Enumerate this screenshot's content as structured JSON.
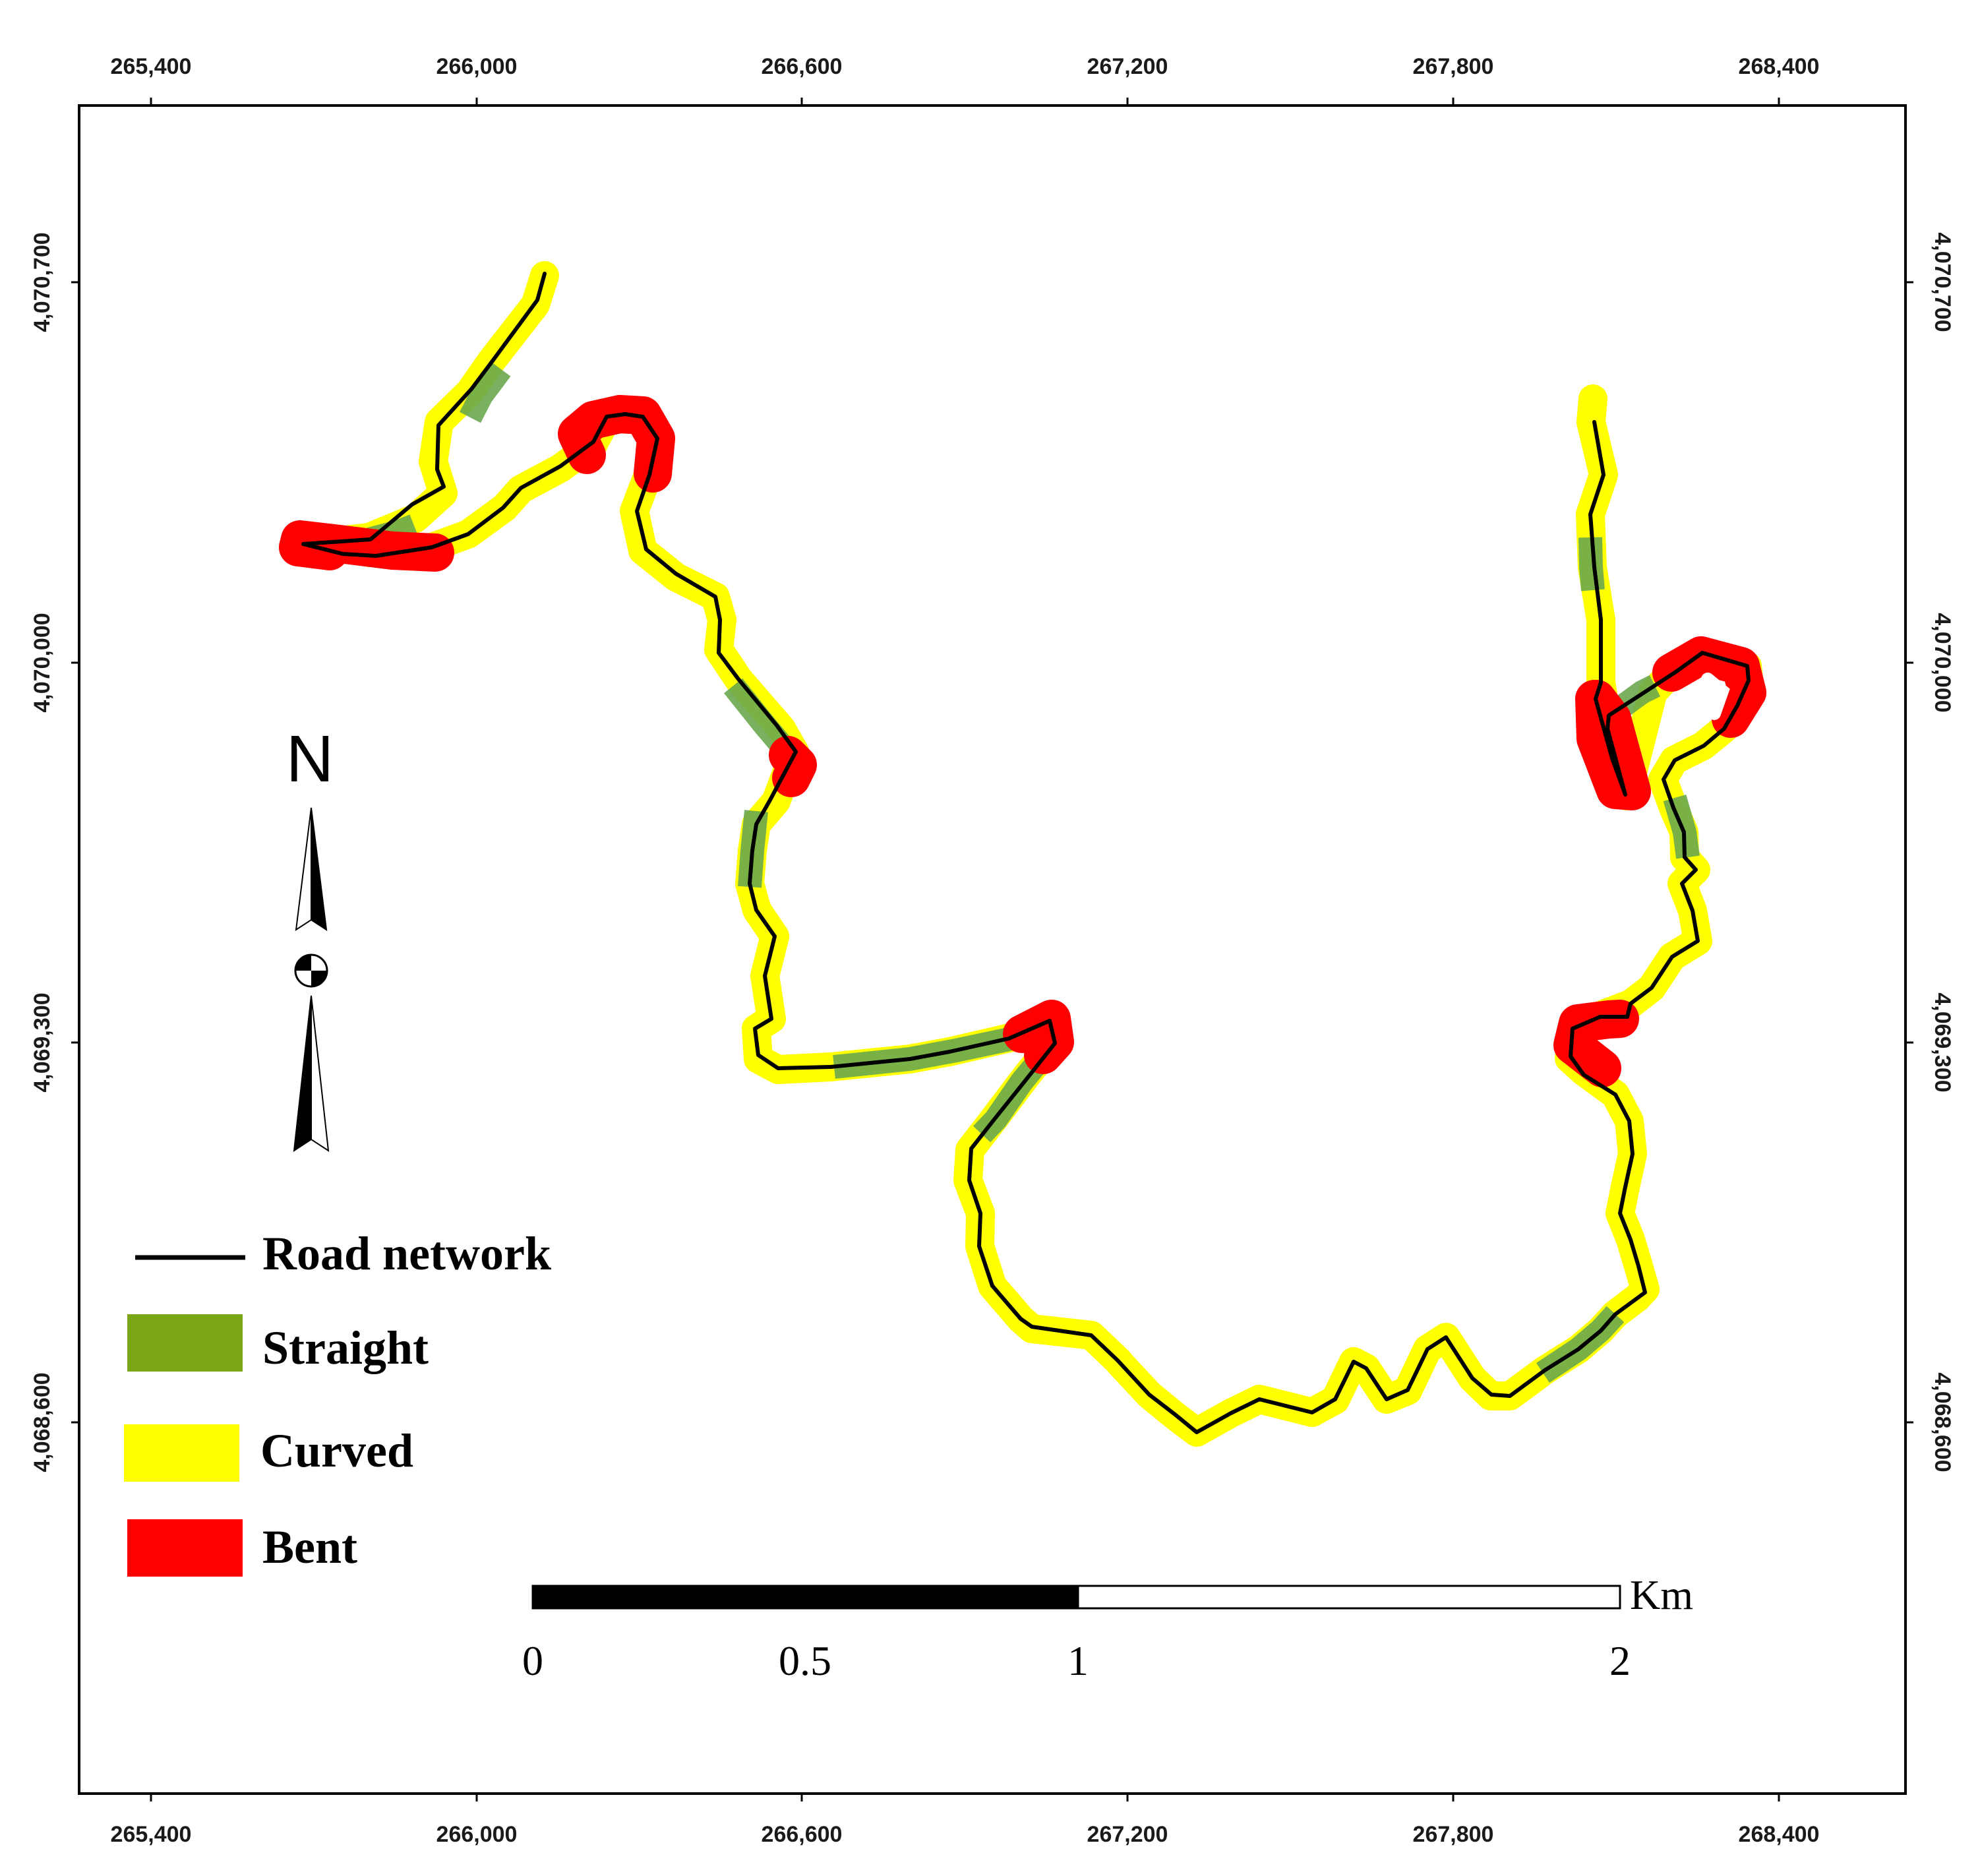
{
  "map": {
    "x_ticks": [
      "265,400",
      "266,000",
      "266,600",
      "267,200",
      "267,800",
      "268,400"
    ],
    "y_ticks": [
      "4,070,700",
      "4,070,000",
      "4,069,300",
      "4,068,600"
    ],
    "north_label": "N",
    "legend": {
      "road_network": "Road network",
      "straight": "Straight",
      "curved": "Curved",
      "bent": "Bent"
    },
    "scale_bar": {
      "unit": "Km",
      "labels": [
        "0",
        "0.5",
        "1",
        "2"
      ]
    },
    "colors": {
      "road": "#000000",
      "straight": "#6aa84f",
      "straight_legend": "#7aa516",
      "curved": "#ffff00",
      "bent": "#ff0000",
      "frame": "#000000"
    }
  }
}
